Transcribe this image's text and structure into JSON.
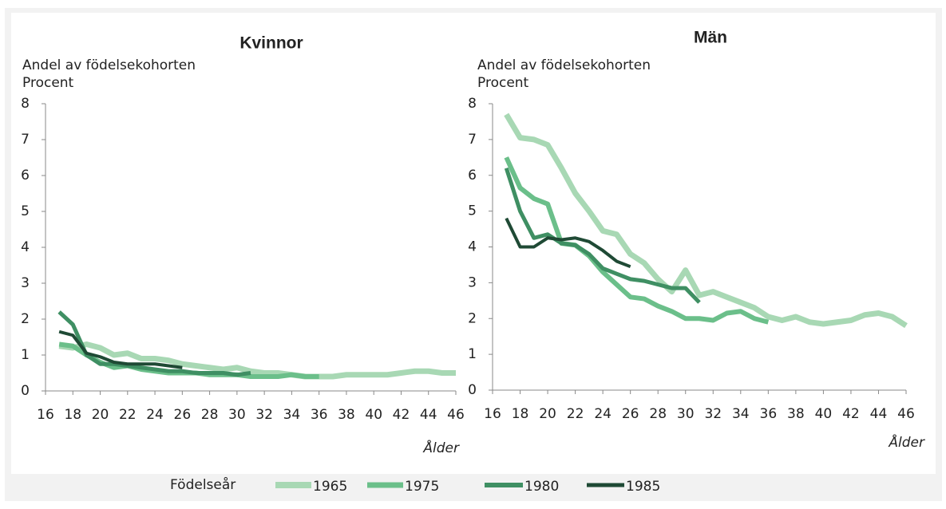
{
  "chart_data": [
    {
      "type": "line",
      "title": "Kvinnor",
      "ylabel": "Andel av födelsekohorten",
      "yunit": "Procent",
      "xlabel": "Ålder",
      "legend_title": "Födelseår",
      "grid": false,
      "x": [
        17,
        18,
        19,
        20,
        21,
        22,
        23,
        24,
        25,
        26,
        27,
        28,
        29,
        30,
        31,
        32,
        33,
        34,
        35,
        36,
        37,
        38,
        39,
        40,
        41,
        42,
        43,
        44,
        45,
        46
      ],
      "xlim": [
        16,
        46
      ],
      "xticks": [
        16,
        18,
        20,
        22,
        24,
        26,
        28,
        30,
        32,
        34,
        36,
        38,
        40,
        42,
        44,
        46
      ],
      "ylim": [
        0,
        8
      ],
      "yticks": [
        0,
        1,
        2,
        3,
        4,
        5,
        6,
        7,
        8
      ],
      "series": [
        {
          "name": "1965",
          "color": "#a8d8b4",
          "values": [
            1.25,
            1.2,
            1.3,
            1.2,
            1.0,
            1.05,
            0.9,
            0.9,
            0.85,
            0.75,
            0.7,
            0.65,
            0.6,
            0.65,
            0.55,
            0.5,
            0.5,
            0.45,
            0.4,
            0.4,
            0.4,
            0.45,
            0.45,
            0.45,
            0.45,
            0.5,
            0.55,
            0.55,
            0.5,
            0.5
          ]
        },
        {
          "name": "1975",
          "color": "#6bbf8a",
          "values": [
            1.3,
            1.25,
            1.0,
            0.8,
            0.65,
            0.7,
            0.6,
            0.55,
            0.5,
            0.5,
            0.5,
            0.45,
            0.45,
            0.45,
            0.4,
            0.4,
            0.4,
            0.45,
            0.4,
            0.4,
            null,
            null,
            null,
            null,
            null,
            null,
            null,
            null,
            null,
            null
          ]
        },
        {
          "name": "1980",
          "color": "#3f8f63",
          "values": [
            2.2,
            1.85,
            1.0,
            0.75,
            0.75,
            0.7,
            0.65,
            0.6,
            0.55,
            0.55,
            0.5,
            0.5,
            0.5,
            0.45,
            0.5,
            null,
            null,
            null,
            null,
            null,
            null,
            null,
            null,
            null,
            null,
            null,
            null,
            null,
            null,
            null
          ]
        },
        {
          "name": "1985",
          "color": "#1f4a35",
          "values": [
            1.65,
            1.55,
            1.05,
            0.95,
            0.8,
            0.75,
            0.75,
            0.75,
            0.7,
            0.65,
            null,
            null,
            null,
            null,
            null,
            null,
            null,
            null,
            null,
            null,
            null,
            null,
            null,
            null,
            null,
            null,
            null,
            null,
            null,
            null
          ]
        }
      ]
    },
    {
      "type": "line",
      "title": "Män",
      "ylabel": "Andel av födelsekohorten",
      "yunit": "Procent",
      "xlabel": "Ålder",
      "grid": false,
      "x": [
        17,
        18,
        19,
        20,
        21,
        22,
        23,
        24,
        25,
        26,
        27,
        28,
        29,
        30,
        31,
        32,
        33,
        34,
        35,
        36,
        37,
        38,
        39,
        40,
        41,
        42,
        43,
        44,
        45,
        46
      ],
      "xlim": [
        16,
        46
      ],
      "xticks": [
        16,
        18,
        20,
        22,
        24,
        26,
        28,
        30,
        32,
        34,
        36,
        38,
        40,
        42,
        44,
        46
      ],
      "ylim": [
        0,
        8
      ],
      "yticks": [
        0,
        1,
        2,
        3,
        4,
        5,
        6,
        7,
        8
      ],
      "series": [
        {
          "name": "1965",
          "color": "#a8d8b4",
          "values": [
            7.7,
            7.05,
            7.0,
            6.85,
            6.2,
            5.5,
            5.0,
            4.45,
            4.35,
            3.8,
            3.55,
            3.1,
            2.75,
            3.35,
            2.65,
            2.75,
            2.6,
            2.45,
            2.3,
            2.05,
            1.95,
            2.05,
            1.9,
            1.85,
            1.9,
            1.95,
            2.1,
            2.15,
            2.05,
            1.8
          ]
        },
        {
          "name": "1975",
          "color": "#6bbf8a",
          "values": [
            6.5,
            5.65,
            5.35,
            5.2,
            4.1,
            4.05,
            3.75,
            3.3,
            2.95,
            2.6,
            2.55,
            2.35,
            2.2,
            2.0,
            2.0,
            1.95,
            2.15,
            2.2,
            2.0,
            1.9,
            null,
            null,
            null,
            null,
            null,
            null,
            null,
            null,
            null,
            null
          ]
        },
        {
          "name": "1980",
          "color": "#3f8f63",
          "values": [
            6.2,
            5.0,
            4.25,
            4.35,
            4.1,
            4.05,
            3.8,
            3.4,
            3.25,
            3.1,
            3.05,
            2.95,
            2.85,
            2.85,
            2.45,
            null,
            null,
            null,
            null,
            null,
            null,
            null,
            null,
            null,
            null,
            null,
            null,
            null,
            null,
            null
          ]
        },
        {
          "name": "1985",
          "color": "#1f4a35",
          "values": [
            4.8,
            4.0,
            4.0,
            4.25,
            4.2,
            4.25,
            4.15,
            3.9,
            3.6,
            3.45,
            null,
            null,
            null,
            null,
            null,
            null,
            null,
            null,
            null,
            null,
            null,
            null,
            null,
            null,
            null,
            null,
            null,
            null,
            null,
            null
          ]
        }
      ]
    }
  ]
}
